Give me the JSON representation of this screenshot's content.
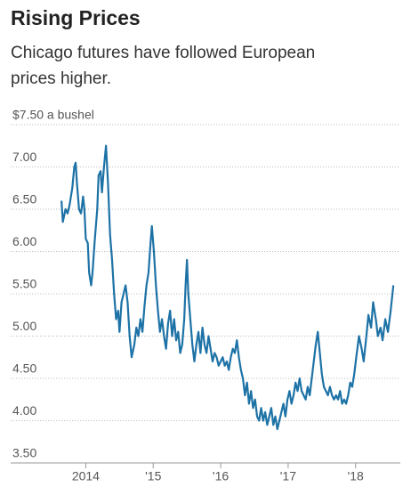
{
  "chart_data": {
    "type": "line",
    "title": "Rising Prices",
    "subtitle": [
      "Chicago futures have followed European",
      "prices higher."
    ],
    "x": [
      2013.64,
      2013.66,
      2013.7,
      2013.73,
      2013.76,
      2013.8,
      2013.83,
      2013.85,
      2013.87,
      2013.9,
      2013.93,
      2013.96,
      2013.98,
      2014.0,
      2014.03,
      2014.05,
      2014.08,
      2014.1,
      2014.13,
      2014.17,
      2014.19,
      2014.22,
      2014.24,
      2014.27,
      2014.3,
      2014.33,
      2014.36,
      2014.39,
      2014.42,
      2014.45,
      2014.48,
      2014.5,
      2014.53,
      2014.56,
      2014.59,
      2014.62,
      2014.65,
      2014.68,
      2014.72,
      2014.75,
      2014.78,
      2014.81,
      2014.84,
      2014.87,
      2014.9,
      2014.93,
      2014.96,
      2014.98,
      2015.01,
      2015.04,
      2015.07,
      2015.1,
      2015.13,
      2015.16,
      2015.19,
      2015.22,
      2015.25,
      2015.28,
      2015.31,
      2015.34,
      2015.37,
      2015.4,
      2015.43,
      2015.46,
      2015.48,
      2015.5,
      2015.52,
      2015.55,
      2015.58,
      2015.61,
      2015.64,
      2015.67,
      2015.7,
      2015.73,
      2015.76,
      2015.79,
      2015.82,
      2015.85,
      2015.88,
      2015.91,
      2015.94,
      2015.97,
      2016.0,
      2016.03,
      2016.06,
      2016.09,
      2016.12,
      2016.15,
      2016.18,
      2016.21,
      2016.24,
      2016.27,
      2016.3,
      2016.33,
      2016.36,
      2016.39,
      2016.42,
      2016.45,
      2016.48,
      2016.51,
      2016.54,
      2016.57,
      2016.6,
      2016.63,
      2016.66,
      2016.69,
      2016.72,
      2016.75,
      2016.78,
      2016.81,
      2016.84,
      2016.87,
      2016.9,
      2016.93,
      2016.96,
      2016.99,
      2017.02,
      2017.05,
      2017.08,
      2017.11,
      2017.14,
      2017.17,
      2017.2,
      2017.23,
      2017.26,
      2017.29,
      2017.32,
      2017.35,
      2017.38,
      2017.41,
      2017.44,
      2017.47,
      2017.5,
      2017.53,
      2017.56,
      2017.59,
      2017.62,
      2017.65,
      2017.68,
      2017.71,
      2017.74,
      2017.77,
      2017.8,
      2017.83,
      2017.86,
      2017.89,
      2017.92,
      2017.95,
      2017.98,
      2018.01,
      2018.05,
      2018.09,
      2018.12,
      2018.16,
      2018.19,
      2018.23,
      2018.26,
      2018.3,
      2018.33,
      2018.37,
      2018.4,
      2018.44,
      2018.48,
      2018.52,
      2018.56
    ],
    "values": [
      6.6,
      6.35,
      6.5,
      6.45,
      6.55,
      6.75,
      7.0,
      7.05,
      6.8,
      6.5,
      6.45,
      6.65,
      6.5,
      6.15,
      6.1,
      5.75,
      5.6,
      5.75,
      6.1,
      6.5,
      6.9,
      6.95,
      6.7,
      7.0,
      7.25,
      6.8,
      6.2,
      5.9,
      5.5,
      5.2,
      5.3,
      5.05,
      5.4,
      5.5,
      5.6,
      5.4,
      5.0,
      4.75,
      4.9,
      5.1,
      5.0,
      5.2,
      5.05,
      5.35,
      5.6,
      5.75,
      6.1,
      6.3,
      6.0,
      5.6,
      5.3,
      5.05,
      5.2,
      5.0,
      4.85,
      5.15,
      5.3,
      5.0,
      5.2,
      4.95,
      5.05,
      4.8,
      4.9,
      5.2,
      5.6,
      5.9,
      5.5,
      5.2,
      4.9,
      4.7,
      4.9,
      5.05,
      4.8,
      5.1,
      4.9,
      4.8,
      5.0,
      4.85,
      4.7,
      4.8,
      4.75,
      4.65,
      4.7,
      4.75,
      4.65,
      4.7,
      4.6,
      4.75,
      4.85,
      4.8,
      4.95,
      4.75,
      4.6,
      4.5,
      4.3,
      4.45,
      4.2,
      4.35,
      4.15,
      4.25,
      4.05,
      4.0,
      4.15,
      4.0,
      4.1,
      3.95,
      4.05,
      4.15,
      3.95,
      4.05,
      3.9,
      4.0,
      4.1,
      4.2,
      4.05,
      4.25,
      4.35,
      4.2,
      4.3,
      4.45,
      4.35,
      4.5,
      4.35,
      4.3,
      4.25,
      4.4,
      4.3,
      4.5,
      4.7,
      4.9,
      5.05,
      4.8,
      4.55,
      4.4,
      4.35,
      4.3,
      4.4,
      4.3,
      4.25,
      4.3,
      4.25,
      4.35,
      4.2,
      4.25,
      4.2,
      4.3,
      4.45,
      4.4,
      4.55,
      4.75,
      5.0,
      4.85,
      4.7,
      5.0,
      5.25,
      5.1,
      5.4,
      5.2,
      5.0,
      5.1,
      4.95,
      5.2,
      5.05,
      5.3,
      5.6
    ],
    "color": "#1d72a6",
    "xlim": [
      2012.9,
      2018.65
    ],
    "xticks": [
      {
        "value": 2014,
        "label": "2014"
      },
      {
        "value": 2015,
        "label": "'15"
      },
      {
        "value": 2016,
        "label": "'16"
      },
      {
        "value": 2017,
        "label": "'17"
      },
      {
        "value": 2018,
        "label": "'18"
      }
    ],
    "ylim": [
      3.5,
      7.5
    ],
    "yticks": [
      {
        "value": 3.5,
        "label": "3.50"
      },
      {
        "value": 4,
        "label": "4.00"
      },
      {
        "value": 4.5,
        "label": "4.50"
      },
      {
        "value": 5,
        "label": "5.00"
      },
      {
        "value": 5.5,
        "label": "5.50"
      },
      {
        "value": 6,
        "label": "6.00"
      },
      {
        "value": 6.5,
        "label": "6.50"
      },
      {
        "value": 7,
        "label": "7.00"
      },
      {
        "value": 7.5,
        "label": "$7.50 a bushel"
      }
    ],
    "grid": true
  }
}
